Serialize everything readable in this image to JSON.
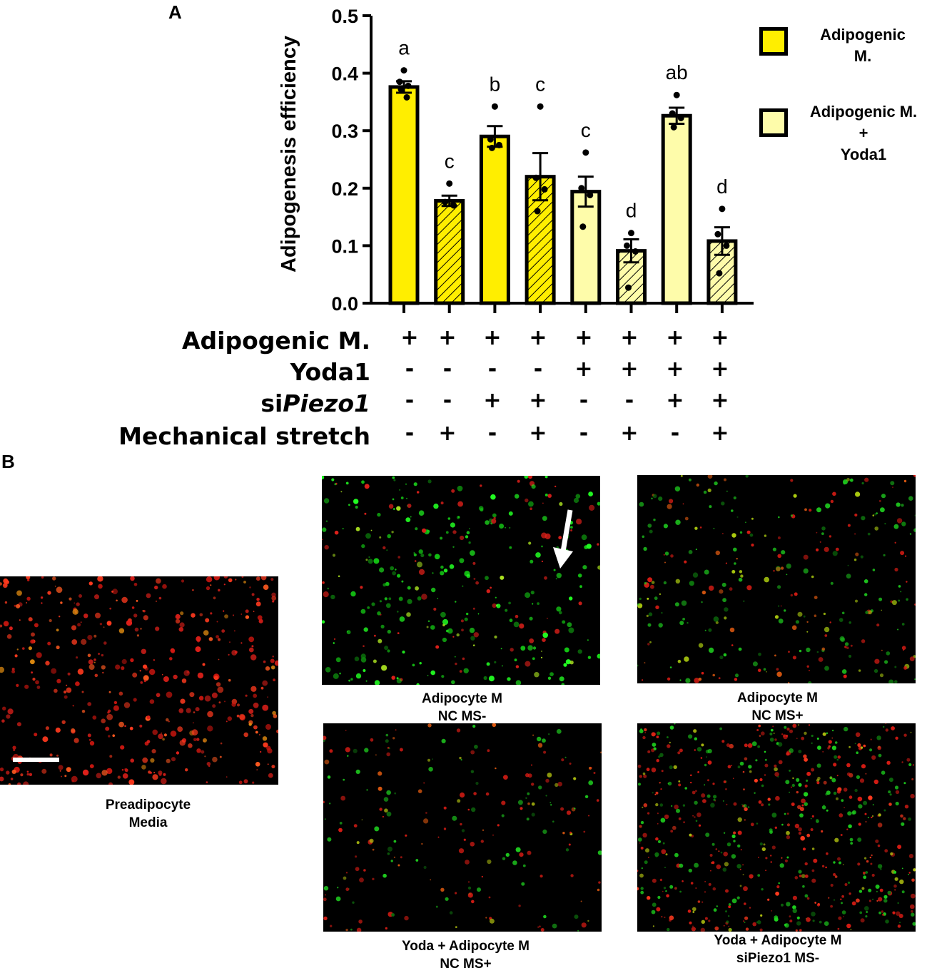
{
  "panel_labels": {
    "a": "A",
    "b": "B"
  },
  "chart_data": {
    "type": "bar",
    "ylabel": "Adipogenesis efficiency",
    "xlabel": "",
    "ylim": [
      0,
      0.5
    ],
    "yticks": [
      "0.0",
      "0.1",
      "0.2",
      "0.3",
      "0.4",
      "0.5"
    ],
    "bars": [
      {
        "value": 0.376,
        "sem": 0.01,
        "letter": "a",
        "style": "Adipogenic M.",
        "hatched": false,
        "points": [
          0.405,
          0.385,
          0.378,
          0.372,
          0.358
        ]
      },
      {
        "value": 0.178,
        "sem": 0.009,
        "letter": "c",
        "style": "Adipogenic M.",
        "hatched": true,
        "points": [
          0.208,
          0.176,
          0.17
        ]
      },
      {
        "value": 0.29,
        "sem": 0.018,
        "letter": "b",
        "style": "Adipogenic M.",
        "hatched": false,
        "points": [
          0.342,
          0.285,
          0.275,
          0.27
        ]
      },
      {
        "value": 0.22,
        "sem": 0.041,
        "letter": "c",
        "style": "Adipogenic M.",
        "hatched": true,
        "points": [
          0.342,
          0.218,
          0.198,
          0.16
        ]
      },
      {
        "value": 0.194,
        "sem": 0.026,
        "letter": "c",
        "style": "Adipogenic M. + Yoda1",
        "hatched": false,
        "points": [
          0.262,
          0.2,
          0.188,
          0.133
        ]
      },
      {
        "value": 0.091,
        "sem": 0.02,
        "letter": "d",
        "style": "Adipogenic M. + Yoda1",
        "hatched": true,
        "points": [
          0.122,
          0.1,
          0.09,
          0.027
        ]
      },
      {
        "value": 0.326,
        "sem": 0.014,
        "letter": "ab",
        "style": "Adipogenic M. + Yoda1",
        "hatched": false,
        "points": [
          0.362,
          0.33,
          0.322,
          0.306
        ]
      },
      {
        "value": 0.108,
        "sem": 0.024,
        "letter": "d",
        "style": "Adipogenic M. + Yoda1",
        "hatched": true,
        "points": [
          0.164,
          0.12,
          0.1,
          0.052
        ]
      }
    ],
    "legend": [
      {
        "label_line1": "Adipogenic",
        "label_line2": "M.",
        "label_line3": "",
        "color": "#ffee00"
      },
      {
        "label_line1": "Adipogenic M.",
        "label_line2": "+",
        "label_line3": "Yoda1",
        "color": "#fefcaa"
      }
    ],
    "legend_position": "right",
    "grid": false,
    "colors": {
      "bar_solid": "#ffee00",
      "bar_light": "#fefcaa",
      "axis": "#000000"
    },
    "condition_table": {
      "rows": [
        {
          "label": "Adipogenic M.",
          "label_italic": "",
          "signs": [
            "+",
            "+",
            "+",
            "+",
            "+",
            "+",
            "+",
            "+"
          ]
        },
        {
          "label": "Yoda1",
          "label_italic": "",
          "signs": [
            "-",
            "-",
            "-",
            "-",
            "+",
            "+",
            "+",
            "+"
          ]
        },
        {
          "label": "si",
          "label_italic": "Piezo1",
          "signs": [
            "-",
            "-",
            "+",
            "+",
            "-",
            "-",
            "+",
            "+"
          ]
        },
        {
          "label": "Mechanical stretch",
          "label_italic": "",
          "signs": [
            "-",
            "+",
            "-",
            "+",
            "-",
            "+",
            "-",
            "+"
          ]
        }
      ]
    }
  },
  "micrographs": [
    {
      "caption_line1": "Preadipocyte",
      "caption_line2": "Media",
      "tone": "red"
    },
    {
      "caption_line1": "Adipocyte M",
      "caption_line2": "NC MS-",
      "tone": "green"
    },
    {
      "caption_line1": "Adipocyte M",
      "caption_line2": "NC MS+",
      "tone": "mixed"
    },
    {
      "caption_line1": "Yoda + Adipocyte M",
      "caption_line2": "NC MS+",
      "tone": "sparse"
    },
    {
      "caption_line1": "Yoda + Adipocyte M",
      "caption_line2": "siPiezo1 MS-",
      "tone": "dense"
    }
  ]
}
